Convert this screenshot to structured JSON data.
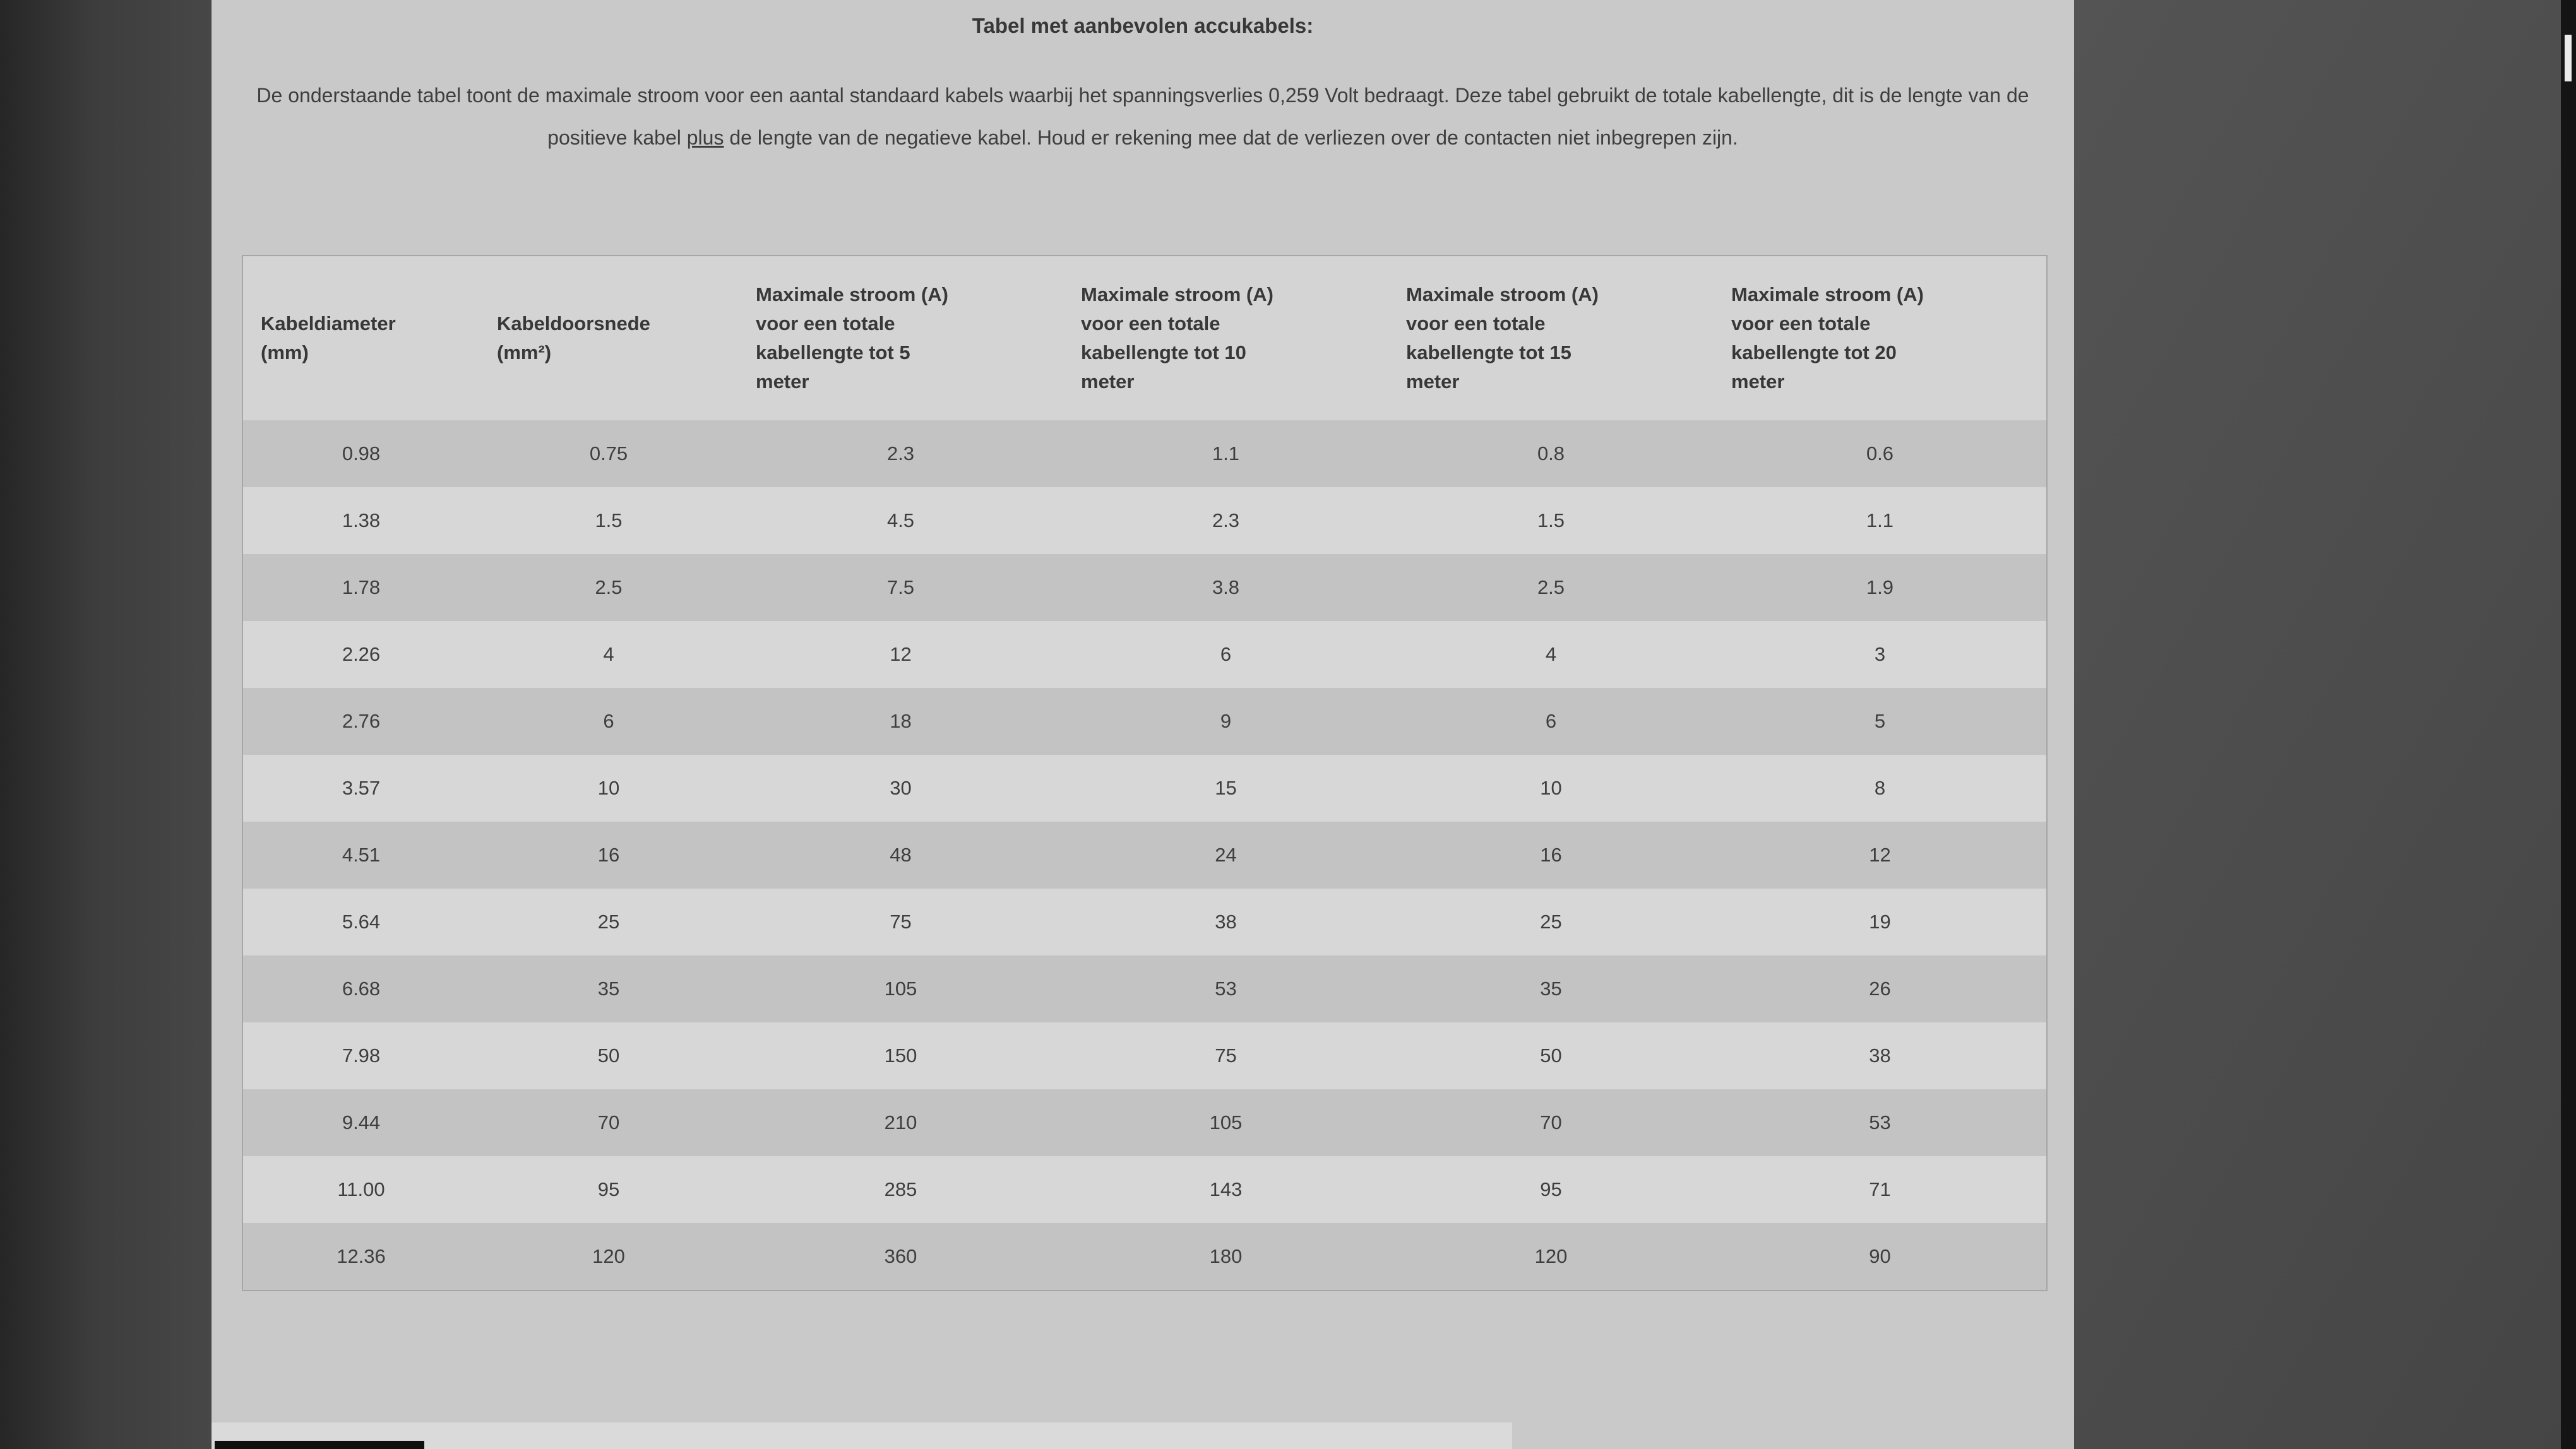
{
  "page": {
    "title": "Tabel met aanbevolen accukabels:",
    "intro": {
      "part1": "De onderstaande tabel toont de maximale stroom voor een aantal standaard kabels waarbij het spanningsverlies 0,259 Volt bedraagt.  Deze tabel gebruikt de totale kabellengte, dit is de lengte van de positieve kabel ",
      "underlined": "plus",
      "part2": " de lengte van de negatieve kabel. Houd er rekening mee dat de verliezen over de contacten niet inbegrepen zijn."
    }
  },
  "table": {
    "headers": [
      "Kabeldiameter\n(mm)",
      "Kabeldoorsnede\n(mm²)",
      "Maximale stroom (A)\nvoor een totale\nkabellengte tot 5\nmeter",
      "Maximale stroom (A)\nvoor een totale\nkabellengte tot 10\nmeter",
      "Maximale stroom (A)\nvoor een totale\nkabellengte tot 15\nmeter",
      "Maximale stroom (A)\nvoor een totale\nkabellengte tot 20\nmeter"
    ],
    "rows": [
      [
        "0.98",
        "0.75",
        "2.3",
        "1.1",
        "0.8",
        "0.6"
      ],
      [
        "1.38",
        "1.5",
        "4.5",
        "2.3",
        "1.5",
        "1.1"
      ],
      [
        "1.78",
        "2.5",
        "7.5",
        "3.8",
        "2.5",
        "1.9"
      ],
      [
        "2.26",
        "4",
        "12",
        "6",
        "4",
        "3"
      ],
      [
        "2.76",
        "6",
        "18",
        "9",
        "6",
        "5"
      ],
      [
        "3.57",
        "10",
        "30",
        "15",
        "10",
        "8"
      ],
      [
        "4.51",
        "16",
        "48",
        "24",
        "16",
        "12"
      ],
      [
        "5.64",
        "25",
        "75",
        "38",
        "25",
        "19"
      ],
      [
        "6.68",
        "35",
        "105",
        "53",
        "35",
        "26"
      ],
      [
        "7.98",
        "50",
        "150",
        "75",
        "50",
        "38"
      ],
      [
        "9.44",
        "70",
        "210",
        "105",
        "70",
        "53"
      ],
      [
        "11.00",
        "95",
        "285",
        "143",
        "95",
        "71"
      ],
      [
        "12.36",
        "120",
        "360",
        "180",
        "120",
        "90"
      ]
    ]
  },
  "colors": {
    "page_background": "#c9c9c9",
    "row_light": "#d7d7d7",
    "row_dark": "#c3c3c3",
    "text": "#3b3b3b",
    "table_border": "#a6a6a6"
  }
}
